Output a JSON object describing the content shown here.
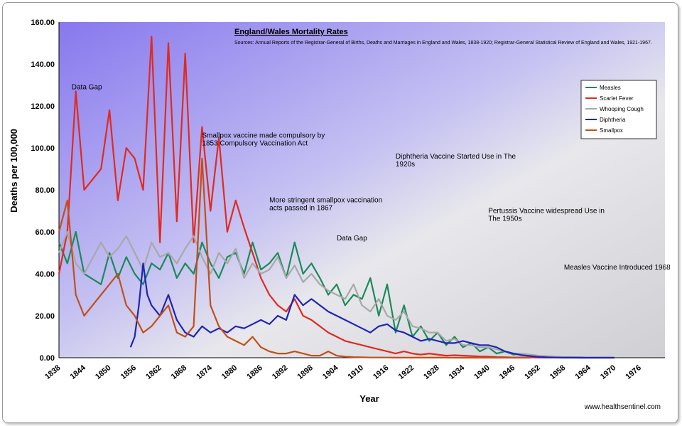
{
  "chart_data": {
    "type": "line",
    "title": "England/Wales Mortality Rates",
    "source_note": "Sources: Annual Reports of the Registrar-General of Births, Deaths and Marriages in England and Wales, 1838-1920; Registrar-General Statistical Review of England and Wales, 1921-1967.",
    "xlabel": "Year",
    "ylabel": "Deaths per 100,000",
    "ylim": [
      0,
      160
    ],
    "xlim": [
      1838,
      1982
    ],
    "y_ticks": [
      "0.00",
      "20.00",
      "40.00",
      "60.00",
      "80.00",
      "100.00",
      "120.00",
      "140.00",
      "160.00"
    ],
    "x_ticks": [
      "1838",
      "1844",
      "1850",
      "1856",
      "1862",
      "1868",
      "1874",
      "1880",
      "1886",
      "1892",
      "1898",
      "1904",
      "1910",
      "1916",
      "1922",
      "1928",
      "1934",
      "1940",
      "1946",
      "1952",
      "1958",
      "1964",
      "1970",
      "1976"
    ],
    "legend": [
      "Measles",
      "Scarlet Fever",
      "Whooping Cough",
      "Diphtheria",
      "Smallpox"
    ],
    "grid": false,
    "legend_position": "top-right",
    "series": [
      {
        "name": "Measles",
        "color": "#1a8a5a",
        "x": [
          1838,
          1840,
          1842,
          1844,
          1848,
          1850,
          1852,
          1854,
          1856,
          1858,
          1860,
          1862,
          1864,
          1866,
          1868,
          1870,
          1872,
          1874,
          1876,
          1878,
          1880,
          1882,
          1884,
          1886,
          1888,
          1890,
          1892,
          1894,
          1896,
          1898,
          1900,
          1902,
          1904,
          1906,
          1908,
          1910,
          1912,
          1914,
          1916,
          1918,
          1920,
          1922,
          1924,
          1926,
          1928,
          1930,
          1932,
          1934,
          1936,
          1938,
          1940,
          1942,
          1944,
          1946,
          1948,
          1950,
          1952,
          1954,
          1956,
          1958,
          1960,
          1962,
          1964,
          1966,
          1968,
          1970
        ],
        "y": [
          55,
          45,
          60,
          40,
          35,
          50,
          38,
          48,
          40,
          35,
          45,
          42,
          50,
          38,
          45,
          40,
          55,
          45,
          38,
          48,
          50,
          40,
          55,
          42,
          45,
          50,
          38,
          55,
          40,
          45,
          38,
          30,
          35,
          25,
          30,
          28,
          38,
          20,
          35,
          12,
          25,
          10,
          15,
          8,
          12,
          6,
          10,
          5,
          7,
          3,
          5,
          2,
          3,
          1.5,
          2,
          1,
          0.8,
          0.5,
          0.4,
          0.3,
          0.2,
          0.2,
          0.1,
          0.1,
          0.1,
          0.05
        ]
      },
      {
        "name": "Scarlet Fever",
        "color": "#e02a20",
        "x": [
          1838,
          1840,
          1842,
          1844,
          1848,
          1850,
          1852,
          1854,
          1856,
          1858,
          1860,
          1862,
          1864,
          1866,
          1868,
          1870,
          1872,
          1874,
          1876,
          1878,
          1880,
          1882,
          1884,
          1886,
          1888,
          1890,
          1892,
          1894,
          1896,
          1898,
          1900,
          1902,
          1904,
          1906,
          1908,
          1910,
          1912,
          1914,
          1916,
          1918,
          1920,
          1922,
          1924,
          1926,
          1928,
          1930,
          1932,
          1934,
          1936,
          1938,
          1940,
          1942,
          1944,
          1946,
          1948,
          1950,
          1952,
          1954,
          1956,
          1958,
          1960,
          1962,
          1964,
          1966,
          1968,
          1970
        ],
        "y": [
          40,
          60,
          127,
          80,
          90,
          118,
          75,
          100,
          95,
          80,
          153,
          55,
          150,
          65,
          145,
          55,
          110,
          70,
          105,
          60,
          75,
          62,
          50,
          38,
          30,
          25,
          22,
          28,
          20,
          18,
          15,
          12,
          10,
          8,
          7,
          6,
          5,
          4,
          3,
          2,
          3,
          2,
          1.5,
          2,
          1.5,
          1,
          1.2,
          1,
          0.8,
          0.6,
          0.5,
          0.3,
          0.2,
          0.1,
          0.1,
          0.1,
          0.05,
          0.05,
          0.05,
          0,
          0,
          0,
          0,
          0,
          0,
          0
        ]
      },
      {
        "name": "Whooping Cough",
        "color": "#a8a8a8",
        "x": [
          1838,
          1840,
          1842,
          1844,
          1848,
          1850,
          1852,
          1854,
          1856,
          1858,
          1860,
          1862,
          1864,
          1866,
          1868,
          1870,
          1872,
          1874,
          1876,
          1878,
          1880,
          1882,
          1884,
          1886,
          1888,
          1890,
          1892,
          1894,
          1896,
          1898,
          1900,
          1902,
          1904,
          1906,
          1908,
          1910,
          1912,
          1914,
          1916,
          1918,
          1920,
          1922,
          1924,
          1926,
          1928,
          1930,
          1932,
          1934,
          1936,
          1938,
          1940,
          1942,
          1944,
          1946,
          1948,
          1950,
          1952,
          1954,
          1956,
          1958,
          1960,
          1962,
          1964,
          1966,
          1968,
          1970
        ],
        "y": [
          50,
          60,
          45,
          40,
          55,
          48,
          52,
          58,
          50,
          42,
          55,
          48,
          50,
          45,
          52,
          58,
          48,
          40,
          50,
          45,
          52,
          38,
          45,
          40,
          42,
          48,
          38,
          44,
          36,
          40,
          35,
          32,
          30,
          28,
          35,
          25,
          22,
          28,
          20,
          18,
          22,
          15,
          14,
          12,
          12,
          8,
          9,
          6,
          6,
          5,
          5,
          4,
          3,
          2,
          2,
          1.5,
          1,
          0.8,
          0.5,
          0.3,
          0.2,
          0.2,
          0.1,
          0.1,
          0.1,
          0.05
        ]
      },
      {
        "name": "Diphtheria",
        "color": "#2024b8",
        "x": [
          1855,
          1856,
          1857,
          1858,
          1859,
          1860,
          1862,
          1864,
          1866,
          1868,
          1870,
          1872,
          1874,
          1876,
          1878,
          1880,
          1882,
          1884,
          1886,
          1888,
          1890,
          1892,
          1894,
          1896,
          1898,
          1900,
          1902,
          1904,
          1906,
          1908,
          1910,
          1912,
          1914,
          1916,
          1918,
          1920,
          1922,
          1924,
          1926,
          1928,
          1930,
          1932,
          1934,
          1936,
          1938,
          1940,
          1942,
          1944,
          1946,
          1948,
          1950,
          1952,
          1954,
          1956,
          1958,
          1960,
          1962,
          1964,
          1966,
          1968,
          1970
        ],
        "y": [
          5,
          10,
          25,
          45,
          30,
          25,
          20,
          30,
          18,
          12,
          10,
          15,
          12,
          14,
          12,
          15,
          14,
          16,
          18,
          16,
          20,
          18,
          30,
          25,
          28,
          25,
          22,
          20,
          18,
          16,
          14,
          12,
          15,
          16,
          13,
          12,
          10,
          8,
          9,
          8,
          7,
          7,
          8,
          7,
          6,
          6,
          5,
          3,
          2,
          1.2,
          0.8,
          0.4,
          0.2,
          0.1,
          0.05,
          0.05,
          0,
          0,
          0,
          0,
          0
        ]
      },
      {
        "name": "Smallpox",
        "color": "#c0501a",
        "x": [
          1838,
          1840,
          1842,
          1844,
          1848,
          1850,
          1852,
          1854,
          1856,
          1858,
          1860,
          1862,
          1864,
          1866,
          1868,
          1870,
          1872,
          1874,
          1876,
          1878,
          1880,
          1882,
          1884,
          1886,
          1888,
          1890,
          1892,
          1894,
          1896,
          1898,
          1900,
          1902,
          1904,
          1906,
          1908,
          1910,
          1912,
          1914,
          1916,
          1918,
          1920,
          1922,
          1924,
          1926,
          1928,
          1930,
          1932,
          1934,
          1936,
          1938,
          1940,
          1942,
          1944,
          1946,
          1948,
          1950
        ],
        "y": [
          60,
          75,
          30,
          20,
          30,
          35,
          40,
          25,
          20,
          12,
          15,
          20,
          25,
          12,
          10,
          15,
          95,
          25,
          15,
          10,
          8,
          6,
          10,
          5,
          3,
          2,
          2,
          3,
          2,
          1,
          1,
          3,
          1,
          0.5,
          0.3,
          0.2,
          0.1,
          0.1,
          0.1,
          0.05,
          0.05,
          0.05,
          0.05,
          0.05,
          0.05,
          0.05,
          0,
          0,
          0,
          0,
          0,
          0,
          0,
          0,
          0,
          0
        ]
      }
    ],
    "annotations": [
      {
        "text": "Data Gap",
        "x": 1841,
        "y": 128
      },
      {
        "text": "Smallpox vaccine made compulsory by 1853 Compulsory Vaccination Act",
        "x": 1872,
        "y": 105
      },
      {
        "text": "More stringent smallpox vaccination acts passed in 1867",
        "x": 1888,
        "y": 74
      },
      {
        "text": "Data Gap",
        "x": 1904,
        "y": 56
      },
      {
        "text": "Diphtheria Vaccine Started Use in The 1920s",
        "x": 1918,
        "y": 95
      },
      {
        "text": "Pertussis Vaccine widespread Use in The 1950s",
        "x": 1940,
        "y": 69
      },
      {
        "text": "Measles Vaccine Introduced 1968",
        "x": 1958,
        "y": 42
      }
    ],
    "watermark": "www.healthsentinel.com"
  }
}
